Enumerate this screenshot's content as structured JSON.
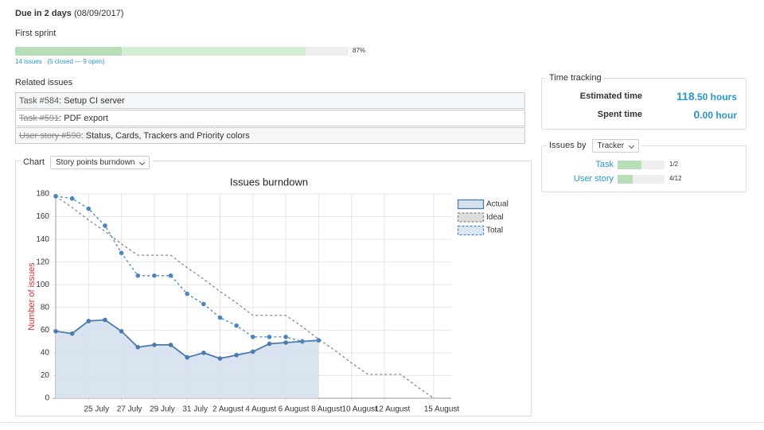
{
  "header": {
    "due": "Due in 2 days",
    "date": "(08/09/2017)"
  },
  "version": {
    "name": "First sprint",
    "closed_percent": 32,
    "done_percent": 87,
    "done_label": "87%",
    "issues_link": "14 issues",
    "issues_detail": "(5 closed — 9 open)"
  },
  "related": {
    "title": "Related issues",
    "rows": [
      {
        "tracker": "Task #584",
        "subject": ": Setup CI server",
        "closed": false
      },
      {
        "tracker": "Task #591",
        "subject": ": PDF export",
        "closed": true
      },
      {
        "tracker": "User story #590",
        "subject": ": Status, Cards, Trackers and Priority colors",
        "closed": true
      }
    ]
  },
  "chart_box": {
    "legend": "Chart",
    "select": "Story points burndown"
  },
  "chart_data": {
    "type": "line",
    "title": "Issues burndown",
    "y_label": "Number of issues",
    "categories": [
      null,
      null,
      "25 July",
      null,
      "27 July",
      null,
      "29 July",
      null,
      "31 July",
      null,
      "2 August",
      null,
      "4 August",
      null,
      "6 August",
      null,
      "8 August",
      null,
      "10 August",
      null,
      "12 August",
      null,
      null,
      "15 August"
    ],
    "ylim": [
      0,
      180
    ],
    "yticks": [
      0,
      20,
      40,
      60,
      80,
      100,
      120,
      140,
      160,
      180
    ],
    "grid": true,
    "series": [
      {
        "name": "Actual",
        "color": "#4a7ab0",
        "fill": "#d6e1ee",
        "area": true,
        "dashed": false,
        "markers": true,
        "values": [
          59,
          57,
          68,
          69,
          59,
          45,
          47,
          47,
          36,
          40,
          35,
          38,
          41,
          48,
          49,
          50,
          51,
          null,
          null,
          null,
          null,
          null,
          null,
          null
        ]
      },
      {
        "name": "Ideal",
        "color": "#888888",
        "fill": "#dddddd",
        "area": false,
        "dashed": true,
        "markers": false,
        "values": [
          178,
          168,
          157,
          147,
          136,
          126,
          126,
          126,
          115,
          105,
          94,
          84,
          73,
          73,
          73,
          63,
          52,
          42,
          31,
          21,
          21,
          21,
          10,
          0
        ]
      },
      {
        "name": "Total",
        "color": "#4a85c0",
        "fill": "#dde7f2",
        "area": false,
        "dashed": true,
        "markers": true,
        "values": [
          178,
          176,
          167,
          152,
          128,
          108,
          108,
          108,
          92,
          83,
          71,
          64,
          54,
          54,
          54,
          50,
          51,
          null,
          null,
          null,
          null,
          null,
          null,
          null
        ]
      }
    ]
  },
  "time_tracking": {
    "title": "Time tracking",
    "rows": [
      {
        "label": "Estimated time",
        "value": "118",
        "unit": ".50 hours"
      },
      {
        "label": "Spent time",
        "value": "0",
        "unit": ".00 hour"
      }
    ]
  },
  "issues_by": {
    "title": "Issues by",
    "select": "Tracker",
    "rows": [
      {
        "label": "Task",
        "percent": 50,
        "count": "1/2"
      },
      {
        "label": "User story",
        "percent": 33,
        "count": "4/12"
      }
    ]
  }
}
